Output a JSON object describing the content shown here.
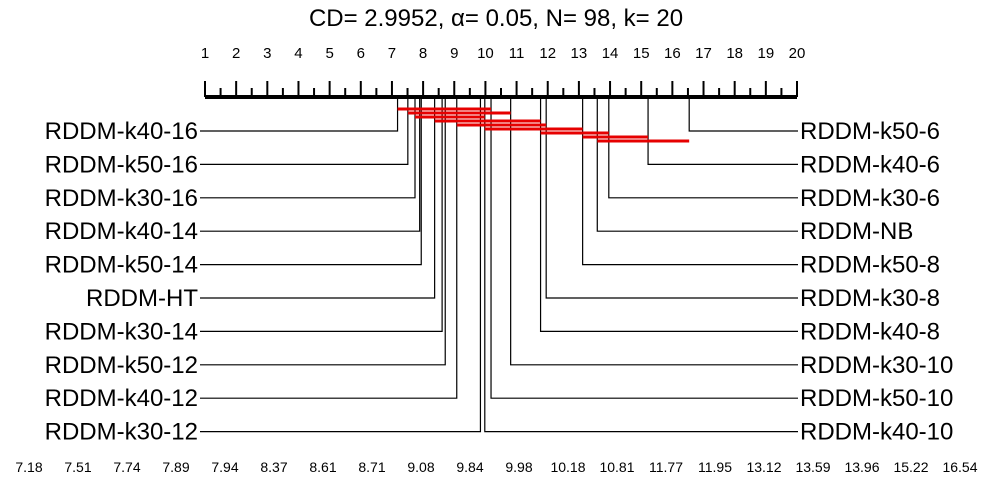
{
  "title": "CD= 2.9952, α= 0.05, N= 98, k= 20",
  "chart_data": {
    "type": "critical-difference",
    "cd": 2.9952,
    "alpha": 0.05,
    "n": 98,
    "k": 20,
    "axis": {
      "min": 1,
      "max": 20,
      "ticks": [
        1,
        2,
        3,
        4,
        5,
        6,
        7,
        8,
        9,
        10,
        11,
        12,
        13,
        14,
        15,
        16,
        17,
        18,
        19,
        20
      ]
    },
    "left_methods": [
      {
        "name": "RDDM-k40-16",
        "rank": 7.18
      },
      {
        "name": "RDDM-k50-16",
        "rank": 7.51
      },
      {
        "name": "RDDM-k30-16",
        "rank": 7.74
      },
      {
        "name": "RDDM-k40-14",
        "rank": 7.89
      },
      {
        "name": "RDDM-k50-14",
        "rank": 7.94
      },
      {
        "name": "RDDM-HT",
        "rank": 8.37
      },
      {
        "name": "RDDM-k30-14",
        "rank": 8.61
      },
      {
        "name": "RDDM-k50-12",
        "rank": 8.71
      },
      {
        "name": "RDDM-k40-12",
        "rank": 9.08
      },
      {
        "name": "RDDM-k30-12",
        "rank": 9.84
      }
    ],
    "right_methods": [
      {
        "name": "RDDM-k50-6",
        "rank": 16.54
      },
      {
        "name": "RDDM-k40-6",
        "rank": 15.22
      },
      {
        "name": "RDDM-k30-6",
        "rank": 13.96
      },
      {
        "name": "RDDM-NB",
        "rank": 13.59
      },
      {
        "name": "RDDM-k50-8",
        "rank": 13.12
      },
      {
        "name": "RDDM-k30-8",
        "rank": 11.95
      },
      {
        "name": "RDDM-k40-8",
        "rank": 11.77
      },
      {
        "name": "RDDM-k30-10",
        "rank": 10.81
      },
      {
        "name": "RDDM-k50-10",
        "rank": 10.18
      },
      {
        "name": "RDDM-k40-10",
        "rank": 9.98
      }
    ],
    "rank_values": [
      "7.18",
      "7.51",
      "7.74",
      "7.89",
      "7.94",
      "8.37",
      "8.61",
      "8.71",
      "9.08",
      "9.84",
      "9.98",
      "10.18",
      "10.81",
      "11.77",
      "11.95",
      "13.12",
      "13.59",
      "13.96",
      "15.22",
      "16.54"
    ],
    "cliques": [
      {
        "from": 7.18,
        "to": 10.18
      },
      {
        "from": 7.51,
        "to": 10.81
      },
      {
        "from": 7.74,
        "to": 9.98
      },
      {
        "from": 8.37,
        "to": 11.77
      },
      {
        "from": 9.08,
        "to": 11.95
      },
      {
        "from": 9.98,
        "to": 13.12
      },
      {
        "from": 11.77,
        "to": 13.96
      },
      {
        "from": 13.12,
        "to": 15.22
      },
      {
        "from": 13.59,
        "to": 16.54
      }
    ],
    "clique_color": "#e60000",
    "line_color": "#000000"
  }
}
